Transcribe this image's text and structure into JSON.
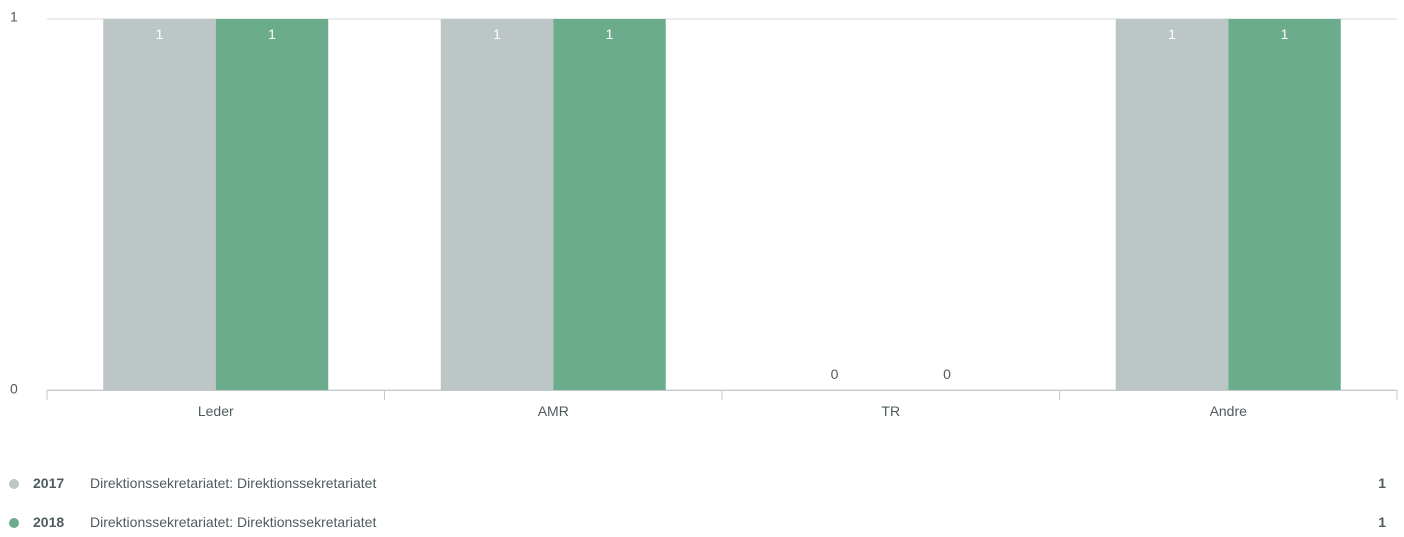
{
  "chart_data": {
    "type": "bar",
    "categories": [
      "Leder",
      "AMR",
      "TR",
      "Andre"
    ],
    "series": [
      {
        "name": "2017",
        "values": [
          1,
          1,
          0,
          1
        ],
        "color": "#bcc6c7"
      },
      {
        "name": "2018",
        "values": [
          1,
          1,
          0,
          1
        ],
        "color": "#6aac8b"
      }
    ],
    "ylim": [
      0,
      1
    ],
    "y_ticks": [
      "0",
      "1"
    ],
    "grid": true,
    "legend_position": "bottom"
  },
  "legend": [
    {
      "year": "2017",
      "label": "Direktionssekretariatet: Direktionssekretariatet",
      "total": "1",
      "color": "#bcc6c7"
    },
    {
      "year": "2018",
      "label": "Direktionssekretariatet: Direktionssekretariatet",
      "total": "1",
      "color": "#6aac8b"
    }
  ]
}
